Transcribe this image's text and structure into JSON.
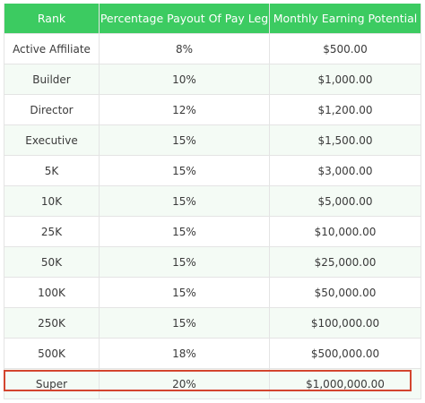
{
  "table": {
    "headers": [
      "Rank",
      "Percentage Payout Of Pay Leg",
      "Monthly Earning Potential"
    ],
    "rows": [
      [
        "Active Affiliate",
        "8%",
        "$500.00"
      ],
      [
        "Builder",
        "10%",
        "$1,000.00"
      ],
      [
        "Director",
        "12%",
        "$1,200.00"
      ],
      [
        "Executive",
        "15%",
        "$1,500.00"
      ],
      [
        "5K",
        "15%",
        "$3,000.00"
      ],
      [
        "10K",
        "15%",
        "$5,000.00"
      ],
      [
        "25K",
        "15%",
        "$10,000.00"
      ],
      [
        "50K",
        "15%",
        "$25,000.00"
      ],
      [
        "100K",
        "15%",
        "$50,000.00"
      ],
      [
        "250K",
        "15%",
        "$100,000.00"
      ],
      [
        "500K",
        "18%",
        "$500,000.00"
      ],
      [
        "Super",
        "20%",
        "$1,000,000.00"
      ]
    ],
    "highlighted_row": "Super",
    "colors": {
      "header_bg": "#3ccb61",
      "stripe_bg": "#f4fbf5",
      "highlight_border": "#d3452f"
    }
  }
}
